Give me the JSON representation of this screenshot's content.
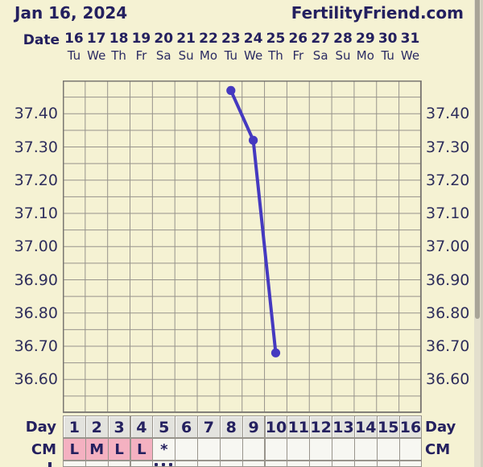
{
  "header": {
    "date_title": "Jan 16, 2024",
    "brand": "FertilityFriend.com"
  },
  "colors": {
    "background": "#f5f2d3",
    "navy_text": "#24205f",
    "gridline": "#97938c",
    "grid_border": "#7b7872",
    "temp_line": "#4539c0",
    "cm_pink": "#f4b1c1",
    "day_cell_gray": "#e3e3de"
  },
  "chart_data": {
    "type": "line",
    "title": "Jan 16, 2024",
    "x_axis": {
      "label": "Date",
      "dates": [
        "16",
        "17",
        "18",
        "19",
        "20",
        "21",
        "22",
        "23",
        "24",
        "25",
        "26",
        "27",
        "28",
        "29",
        "30",
        "31"
      ],
      "weekdays": [
        "Tu",
        "We",
        "Th",
        "Fr",
        "Sa",
        "Su",
        "Mo",
        "Tu",
        "We",
        "Th",
        "Fr",
        "Sa",
        "Su",
        "Mo",
        "Tu",
        "We"
      ],
      "cycle_days": [
        "1",
        "2",
        "3",
        "4",
        "5",
        "6",
        "7",
        "8",
        "9",
        "10",
        "11",
        "12",
        "13",
        "14",
        "15",
        "16"
      ]
    },
    "y_axis": {
      "ticks": [
        "37.40",
        "37.30",
        "37.20",
        "37.10",
        "37.00",
        "36.90",
        "36.80",
        "36.70",
        "36.60"
      ],
      "ylim": [
        36.5,
        37.5
      ],
      "tick_step": 0.1,
      "grid_step": 0.05
    },
    "grid": true,
    "series": [
      {
        "name": "temperature",
        "points": [
          {
            "cycle_day": 8,
            "date": "23",
            "weekday": "Tu",
            "temp": 37.47
          },
          {
            "cycle_day": 9,
            "date": "24",
            "weekday": "We",
            "temp": 37.32
          },
          {
            "cycle_day": 10,
            "date": "25",
            "weekday": "Th",
            "temp": 36.68
          }
        ]
      }
    ]
  },
  "bottom": {
    "day_label": "Day",
    "cm_label": "CM",
    "cm_values": [
      "L",
      "M",
      "L",
      "L",
      "*",
      "",
      "",
      "",
      "",
      "",
      "",
      "",
      "",
      "",
      "",
      ""
    ]
  }
}
